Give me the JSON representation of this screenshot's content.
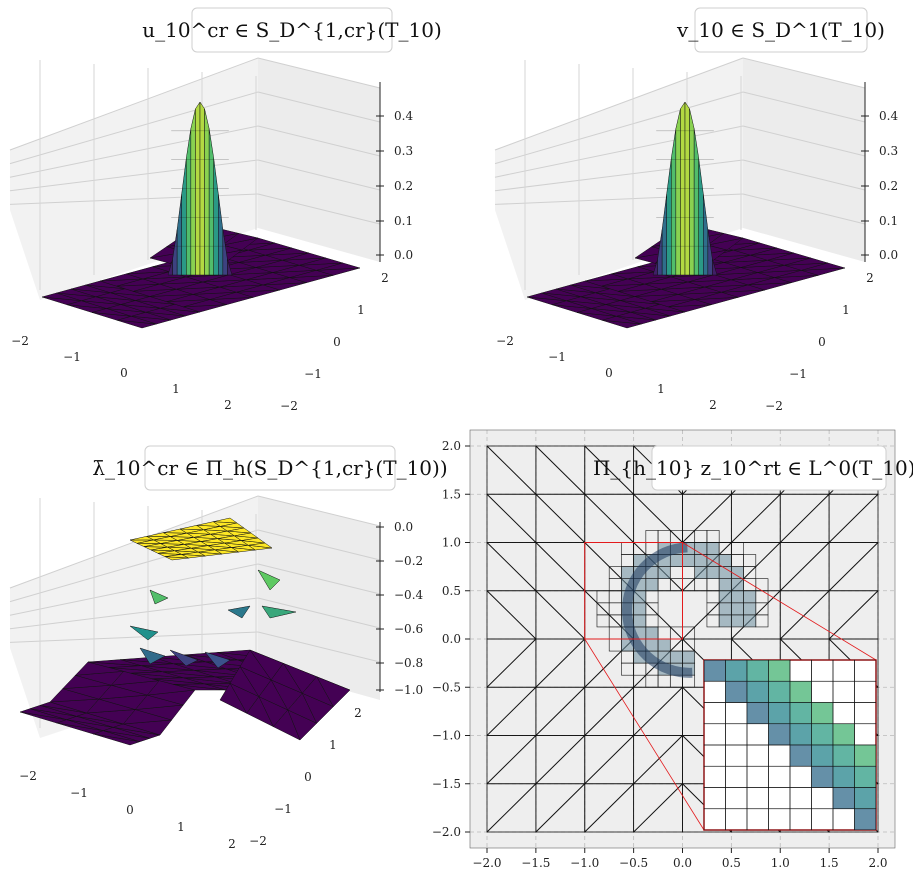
{
  "chart_data": [
    {
      "type": "surface3d",
      "title": "u_10^cr ∈ S_D^{1,cr}(T_10)",
      "x_ticks": [
        "−2",
        "−1",
        "0",
        "1",
        "2"
      ],
      "y_ticks": [
        "−2",
        "−1",
        "0",
        "1",
        "2"
      ],
      "z_ticks": [
        "0.0",
        "0.1",
        "0.2",
        "0.3",
        "0.4"
      ],
      "zlim": [
        0.0,
        0.45
      ],
      "colormap": "viridis"
    },
    {
      "type": "surface3d",
      "title": "v_10 ∈ S_D^1(T_10)",
      "x_ticks": [
        "−2",
        "−1",
        "0",
        "1",
        "2"
      ],
      "y_ticks": [
        "−2",
        "−1",
        "0",
        "1",
        "2"
      ],
      "z_ticks": [
        "0.0",
        "0.1",
        "0.2",
        "0.3",
        "0.4"
      ],
      "zlim": [
        0.0,
        0.45
      ],
      "colormap": "viridis"
    },
    {
      "type": "surface3d",
      "title": "λ̄_10^cr ∈ Π_h(S_D^{1,cr}(T_10))",
      "x_ticks": [
        "−2",
        "−1",
        "0",
        "1",
        "2"
      ],
      "y_ticks": [
        "−2",
        "−1",
        "0",
        "1",
        "2"
      ],
      "z_ticks": [
        "0.0",
        "−0.2",
        "−0.4",
        "−0.6",
        "−0.8",
        "−1.0"
      ],
      "zlim": [
        -1.0,
        0.0
      ],
      "colormap": "viridis"
    },
    {
      "type": "mesh2d",
      "title": "Π_{h_10} z_10^rt ∈ L^0(T_10)^2",
      "x_ticks": [
        "−2.0",
        "−1.5",
        "−1.0",
        "−0.5",
        "0.0",
        "0.5",
        "1.0",
        "1.5",
        "2.0"
      ],
      "y_ticks": [
        "2.0",
        "1.5",
        "1.0",
        "0.5",
        "0.0",
        "−0.5",
        "−1.0",
        "−1.5",
        "−2.0"
      ],
      "xlim": [
        -2.0,
        2.0
      ],
      "ylim": [
        -2.0,
        2.0
      ],
      "grid": true,
      "inset_region": {
        "x": [
          -1.0,
          0.0
        ],
        "y": [
          0.0,
          1.0
        ]
      }
    }
  ]
}
